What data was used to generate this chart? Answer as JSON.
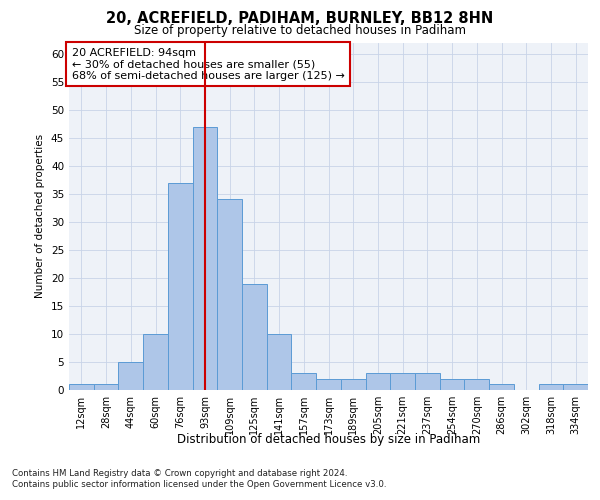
{
  "title1": "20, ACREFIELD, PADIHAM, BURNLEY, BB12 8HN",
  "title2": "Size of property relative to detached houses in Padiham",
  "xlabel": "Distribution of detached houses by size in Padiham",
  "ylabel": "Number of detached properties",
  "categories": [
    "12sqm",
    "28sqm",
    "44sqm",
    "60sqm",
    "76sqm",
    "93sqm",
    "109sqm",
    "125sqm",
    "141sqm",
    "157sqm",
    "173sqm",
    "189sqm",
    "205sqm",
    "221sqm",
    "237sqm",
    "254sqm",
    "270sqm",
    "286sqm",
    "302sqm",
    "318sqm",
    "334sqm"
  ],
  "values": [
    1,
    1,
    5,
    10,
    37,
    47,
    34,
    19,
    10,
    3,
    2,
    2,
    3,
    3,
    3,
    2,
    2,
    1,
    0,
    1,
    1
  ],
  "bar_color": "#aec6e8",
  "bar_edge_color": "#5b9bd5",
  "vline_x_index": 5,
  "vline_color": "#cc0000",
  "annotation_text": "20 ACREFIELD: 94sqm\n← 30% of detached houses are smaller (55)\n68% of semi-detached houses are larger (125) →",
  "annotation_box_color": "#ffffff",
  "annotation_box_edge": "#cc0000",
  "ylim": [
    0,
    62
  ],
  "yticks": [
    0,
    5,
    10,
    15,
    20,
    25,
    30,
    35,
    40,
    45,
    50,
    55,
    60
  ],
  "footer1": "Contains HM Land Registry data © Crown copyright and database right 2024.",
  "footer2": "Contains public sector information licensed under the Open Government Licence v3.0.",
  "plot_bg_color": "#eef2f8"
}
